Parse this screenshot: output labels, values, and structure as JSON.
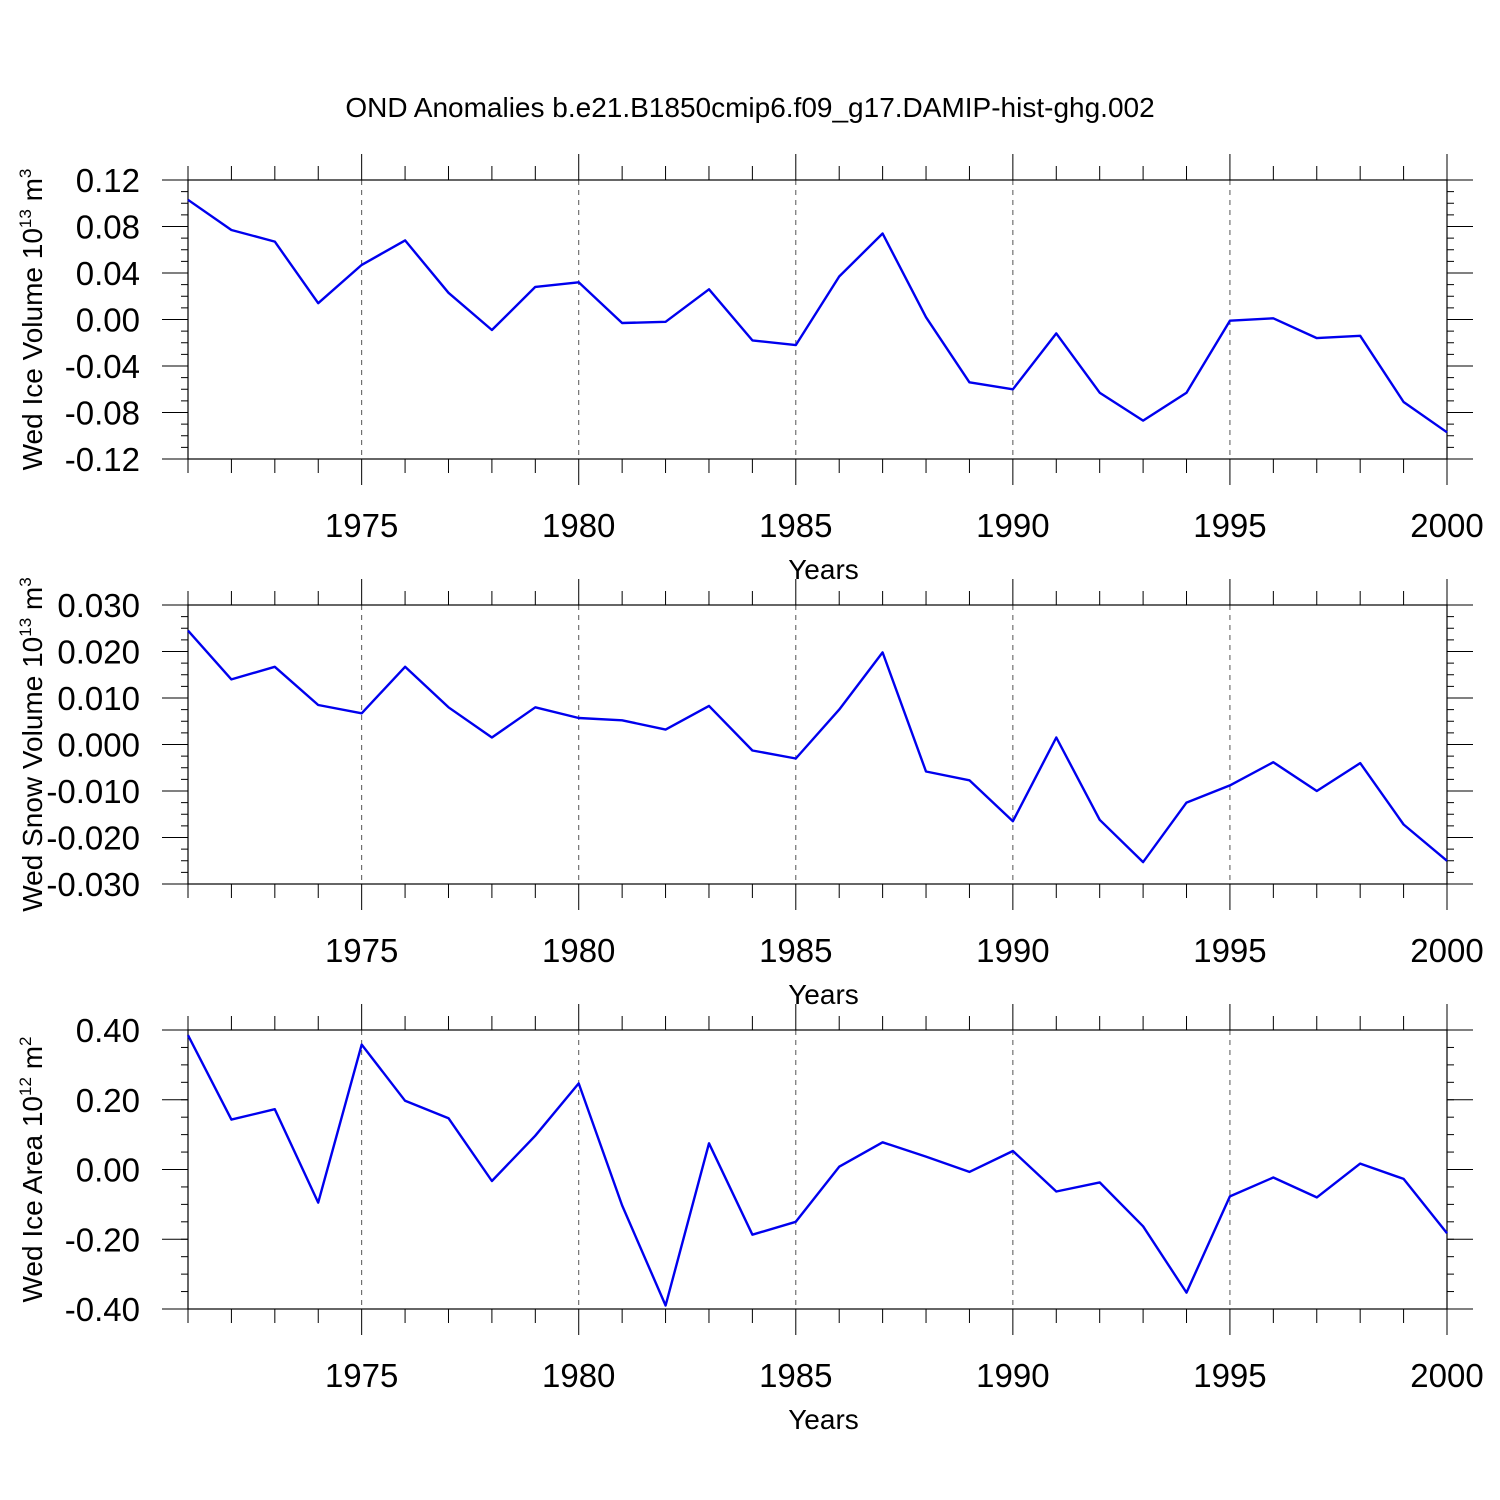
{
  "title": "OND Anomalies b.e21.B1850cmip6.f09_g17.DAMIP-hist-ghg.002",
  "line_color": "#0000ee",
  "chart_data": [
    {
      "type": "line",
      "ylabel_parts": [
        "Wed Ice Volume 10",
        "13",
        " m",
        "3"
      ],
      "xlabel": "Years",
      "x": [
        1971,
        1972,
        1973,
        1974,
        1975,
        1976,
        1977,
        1978,
        1979,
        1980,
        1981,
        1982,
        1983,
        1984,
        1985,
        1986,
        1987,
        1988,
        1989,
        1990,
        1991,
        1992,
        1993,
        1994,
        1995,
        1996,
        1997,
        1998,
        1999,
        2000
      ],
      "values": [
        0.103,
        0.077,
        0.067,
        0.014,
        0.047,
        0.068,
        0.023,
        -0.009,
        0.028,
        0.032,
        -0.003,
        -0.002,
        0.026,
        -0.018,
        -0.022,
        0.037,
        0.074,
        0.002,
        -0.054,
        -0.06,
        -0.012,
        -0.063,
        -0.087,
        -0.063,
        -0.001,
        0.001,
        -0.016,
        -0.014,
        -0.071,
        -0.097
      ],
      "xlim": [
        1971,
        2000
      ],
      "ylim": [
        -0.12,
        0.12
      ],
      "xticks": [
        1975,
        1980,
        1985,
        1990,
        1995,
        2000
      ],
      "yticks": [
        0.12,
        0.08,
        0.04,
        0.0,
        -0.04,
        -0.08,
        -0.12
      ],
      "ytick_labels": [
        "0.12",
        "0.08",
        "0.04",
        "0.00",
        "-0.04",
        "-0.08",
        "-0.12"
      ],
      "grid": "x-dashed"
    },
    {
      "type": "line",
      "ylabel_parts": [
        "Wed Snow Volume 10",
        "13",
        " m",
        "3"
      ],
      "xlabel": "Years",
      "x": [
        1971,
        1972,
        1973,
        1974,
        1975,
        1976,
        1977,
        1978,
        1979,
        1980,
        1981,
        1982,
        1983,
        1984,
        1985,
        1986,
        1987,
        1988,
        1989,
        1990,
        1991,
        1992,
        1993,
        1994,
        1995,
        1996,
        1997,
        1998,
        1999,
        2000
      ],
      "values": [
        0.0245,
        0.014,
        0.0167,
        0.0085,
        0.0067,
        0.0167,
        0.008,
        0.0015,
        0.008,
        0.0057,
        0.0052,
        0.0032,
        0.0083,
        -0.0013,
        -0.003,
        0.0075,
        0.0198,
        -0.0058,
        -0.0077,
        -0.0165,
        0.0015,
        -0.0162,
        -0.0253,
        -0.0125,
        -0.0088,
        -0.0038,
        -0.01,
        -0.004,
        -0.0172,
        -0.025
      ],
      "xlim": [
        1971,
        2000
      ],
      "ylim": [
        -0.03,
        0.03
      ],
      "xticks": [
        1975,
        1980,
        1985,
        1990,
        1995,
        2000
      ],
      "yticks": [
        0.03,
        0.02,
        0.01,
        0.0,
        -0.01,
        -0.02,
        -0.03
      ],
      "ytick_labels": [
        "0.030",
        "0.020",
        "0.010",
        "0.000",
        "-0.010",
        "-0.020",
        "-0.030"
      ],
      "grid": "x-dashed"
    },
    {
      "type": "line",
      "ylabel_parts": [
        "Wed Ice Area 10",
        "12",
        " m",
        "2"
      ],
      "xlabel": "Years",
      "x": [
        1971,
        1972,
        1973,
        1974,
        1975,
        1976,
        1977,
        1978,
        1979,
        1980,
        1981,
        1982,
        1983,
        1984,
        1985,
        1986,
        1987,
        1988,
        1989,
        1990,
        1991,
        1992,
        1993,
        1994,
        1995,
        1996,
        1997,
        1998,
        1999,
        2000
      ],
      "values": [
        0.385,
        0.143,
        0.173,
        -0.095,
        0.358,
        0.197,
        0.147,
        -0.033,
        0.097,
        0.247,
        -0.103,
        -0.39,
        0.075,
        -0.187,
        -0.15,
        0.008,
        0.078,
        0.037,
        -0.007,
        0.053,
        -0.063,
        -0.037,
        -0.163,
        -0.353,
        -0.077,
        -0.023,
        -0.08,
        0.017,
        -0.027,
        -0.183
      ],
      "xlim": [
        1971,
        2000
      ],
      "ylim": [
        -0.4,
        0.4
      ],
      "xticks": [
        1975,
        1980,
        1985,
        1990,
        1995,
        2000
      ],
      "yticks": [
        0.4,
        0.2,
        0.0,
        -0.2,
        -0.4
      ],
      "ytick_labels": [
        "0.40",
        "0.20",
        "0.00",
        "-0.20",
        "-0.40"
      ],
      "grid": "x-dashed"
    }
  ]
}
